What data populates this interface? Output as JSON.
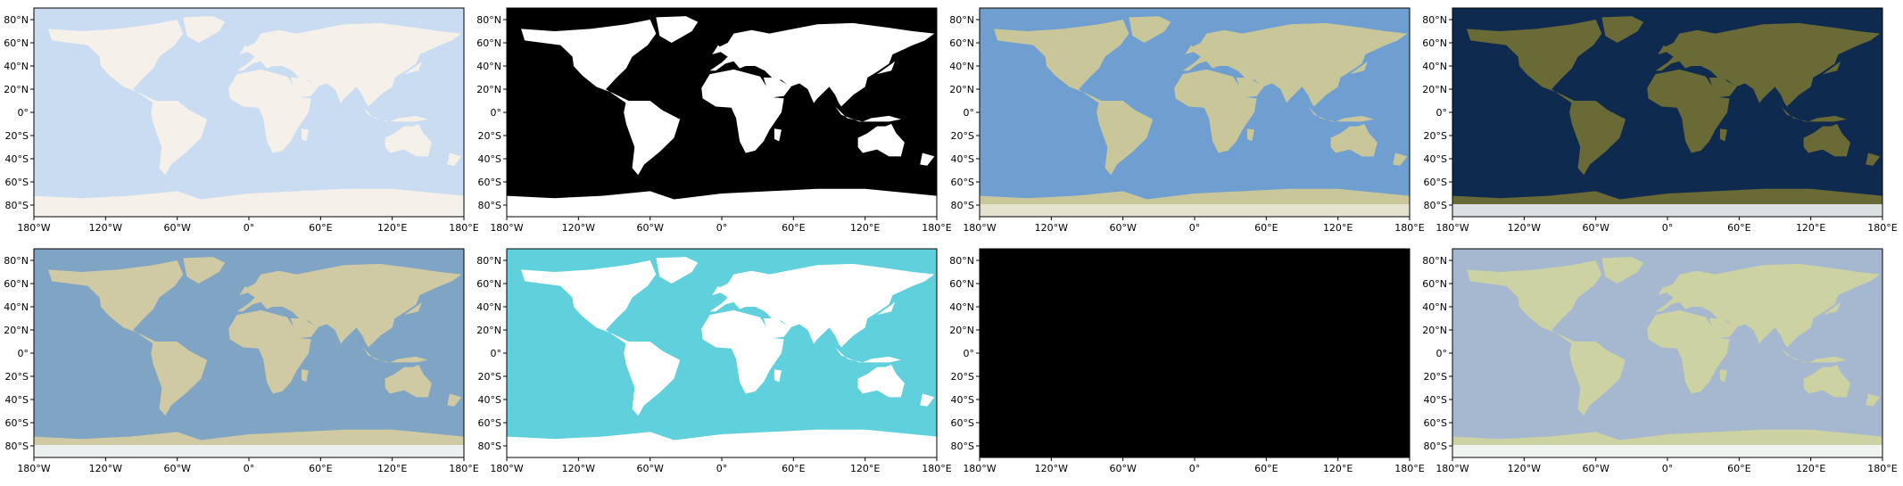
{
  "figure": {
    "x_tick_labels": [
      "180°W",
      "120°W",
      "60°W",
      "0°",
      "60°E",
      "120°E",
      "180°E"
    ],
    "y_tick_labels": [
      "80°N",
      "60°N",
      "40°N",
      "20°N",
      "0°",
      "20°S",
      "40°S",
      "60°S",
      "80°S"
    ],
    "panels": [
      {
        "style": "light-land-on-pale-blue-ocean",
        "ocean_color": "#c9dcf2",
        "land_color": "#f5f1ea",
        "ice_color": "#f5f1ea"
      },
      {
        "style": "binary-white-land-black-ocean",
        "ocean_color": "#000000",
        "land_color": "#ffffff",
        "ice_color": "#ffffff"
      },
      {
        "style": "tan-land-blue-bathymetry",
        "ocean_color": "#6f9fd0",
        "land_color": "#c9c79a",
        "ice_color": "#e8e4d4"
      },
      {
        "style": "satellite-dark-blue-marble",
        "ocean_color": "#0f2a4f",
        "land_color": "#6a6a36",
        "ice_color": "#e8eef6"
      },
      {
        "style": "shaded-relief-muted",
        "ocean_color": "#7fa4c4",
        "land_color": "#cfc9a4",
        "ice_color": "#eef3f7"
      },
      {
        "style": "cyan-ocean-white-land",
        "ocean_color": "#5fd0dc",
        "land_color": "#ffffff",
        "ice_color": "#ffffff"
      },
      {
        "style": "black-background-sparse-labels",
        "ocean_color": "#000000",
        "land_color": "#000000",
        "ice_color": "#000000"
      },
      {
        "style": "green-vegetation-land-grey-blue-ocean",
        "ocean_color": "#a5b8cf",
        "land_color": "#cdd2a2",
        "ice_color": "#f4f7f9"
      }
    ]
  }
}
